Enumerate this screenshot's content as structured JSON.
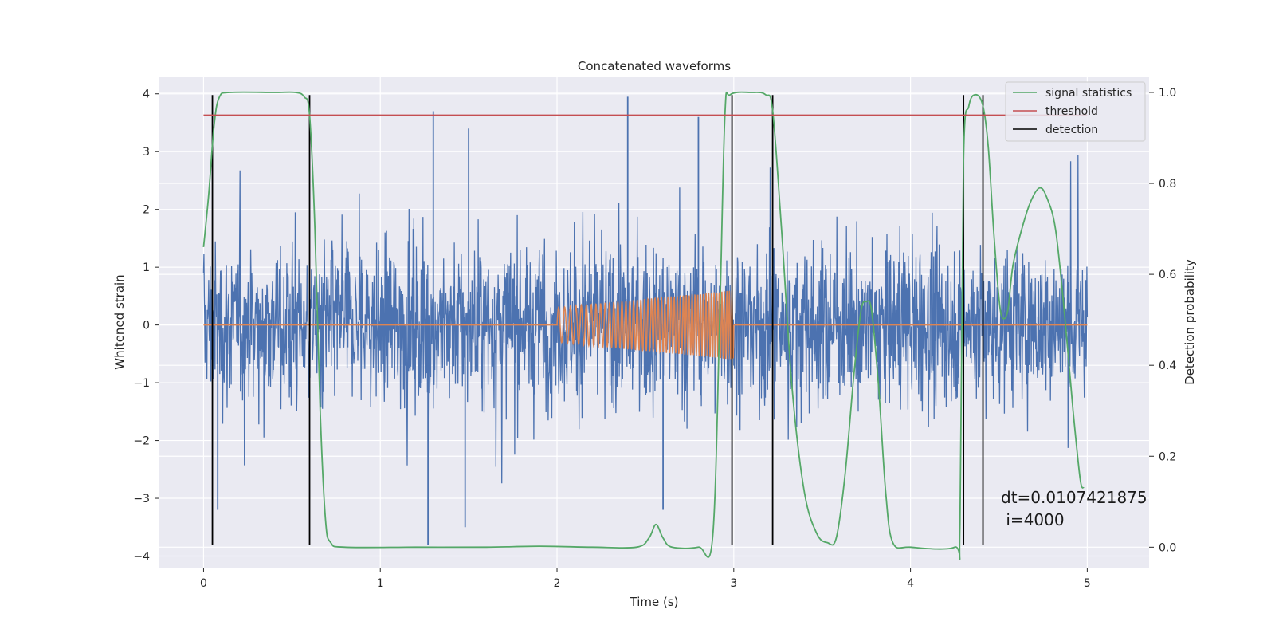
{
  "chart_data": {
    "type": "line",
    "title": "Concatenated waveforms",
    "xlabel": "Time (s)",
    "ylabel_left": "Whitened strain",
    "ylabel_right": "Detection probability",
    "xlim": [
      -0.25,
      5.35
    ],
    "ylim_left": [
      -4.2,
      4.3
    ],
    "ylim_right": [
      -0.045,
      1.035
    ],
    "x_ticks": [
      0,
      1,
      2,
      3,
      4,
      5
    ],
    "x_tick_labels": [
      "0",
      "1",
      "2",
      "3",
      "4",
      "5"
    ],
    "y_left_ticks": [
      -4,
      -3,
      -2,
      -1,
      0,
      1,
      2,
      3,
      4
    ],
    "y_left_tick_labels": [
      "−4",
      "−3",
      "−2",
      "−1",
      "0",
      "1",
      "2",
      "3",
      "4"
    ],
    "y_right_ticks": [
      0.0,
      0.2,
      0.4,
      0.6,
      0.8,
      1.0
    ],
    "y_right_tick_labels": [
      "0.0",
      "0.2",
      "0.4",
      "0.6",
      "0.8",
      "1.0"
    ],
    "grid": true,
    "legend_position": "top-right",
    "series": [
      {
        "name": "",
        "kind": "noisy whitened strain",
        "axis": "left",
        "color": "#4c72b0",
        "x_range": [
          0,
          5
        ],
        "approx_envelope": [
          -2.9,
          3.9
        ],
        "peaks": [
          {
            "x": 1.3,
            "y": 3.7
          },
          {
            "x": 1.5,
            "y": 3.4
          },
          {
            "x": 2.4,
            "y": 3.95
          },
          {
            "x": 2.8,
            "y": 3.6
          },
          {
            "x": 1.27,
            "y": -3.8
          },
          {
            "x": 1.48,
            "y": -3.5
          },
          {
            "x": 0.08,
            "y": -3.2
          },
          {
            "x": 2.6,
            "y": -3.2
          }
        ]
      },
      {
        "name": "",
        "kind": "injected chirp",
        "axis": "left",
        "color": "#dd8452",
        "x_range": [
          0,
          5
        ],
        "chirp_x_range": [
          2.0,
          3.0
        ],
        "chirp_amplitude_range": [
          0.3,
          0.6
        ]
      },
      {
        "name": "signal statistics",
        "axis": "right",
        "color": "#55a868",
        "points": [
          [
            0.0,
            0.66
          ],
          [
            0.03,
            0.78
          ],
          [
            0.06,
            0.93
          ],
          [
            0.09,
            0.99
          ],
          [
            0.15,
            1.0
          ],
          [
            0.4,
            1.0
          ],
          [
            0.52,
            1.0
          ],
          [
            0.57,
            0.99
          ],
          [
            0.6,
            0.95
          ],
          [
            0.63,
            0.7
          ],
          [
            0.66,
            0.3
          ],
          [
            0.69,
            0.06
          ],
          [
            0.72,
            0.01
          ],
          [
            0.8,
            0.0
          ],
          [
            1.2,
            0.0
          ],
          [
            1.6,
            0.0
          ],
          [
            1.9,
            0.002
          ],
          [
            2.2,
            0.0
          ],
          [
            2.45,
            0.0
          ],
          [
            2.52,
            0.02
          ],
          [
            2.56,
            0.05
          ],
          [
            2.6,
            0.02
          ],
          [
            2.65,
            0.0
          ],
          [
            2.8,
            0.0
          ],
          [
            2.88,
            0.02
          ],
          [
            2.92,
            0.5
          ],
          [
            2.95,
            0.95
          ],
          [
            2.98,
            0.995
          ],
          [
            3.1,
            1.0
          ],
          [
            3.18,
            0.995
          ],
          [
            3.22,
            0.96
          ],
          [
            3.27,
            0.7
          ],
          [
            3.33,
            0.35
          ],
          [
            3.4,
            0.12
          ],
          [
            3.47,
            0.03
          ],
          [
            3.53,
            0.01
          ],
          [
            3.58,
            0.02
          ],
          [
            3.63,
            0.16
          ],
          [
            3.68,
            0.38
          ],
          [
            3.72,
            0.52
          ],
          [
            3.75,
            0.54
          ],
          [
            3.78,
            0.52
          ],
          [
            3.82,
            0.35
          ],
          [
            3.86,
            0.12
          ],
          [
            3.9,
            0.01
          ],
          [
            4.0,
            0.0
          ],
          [
            4.25,
            0.0
          ],
          [
            4.28,
            0.05
          ],
          [
            4.3,
            0.85
          ],
          [
            4.33,
            0.97
          ],
          [
            4.37,
            0.995
          ],
          [
            4.41,
            0.97
          ],
          [
            4.44,
            0.88
          ],
          [
            4.47,
            0.7
          ],
          [
            4.5,
            0.55
          ],
          [
            4.52,
            0.505
          ],
          [
            4.55,
            0.52
          ],
          [
            4.58,
            0.62
          ],
          [
            4.63,
            0.7
          ],
          [
            4.68,
            0.76
          ],
          [
            4.73,
            0.79
          ],
          [
            4.77,
            0.77
          ],
          [
            4.82,
            0.7
          ],
          [
            4.87,
            0.52
          ],
          [
            4.92,
            0.3
          ],
          [
            4.96,
            0.15
          ],
          [
            4.98,
            0.13
          ]
        ]
      },
      {
        "name": "threshold",
        "axis": "right",
        "color": "#c44e52",
        "points": [
          [
            0.0,
            0.95
          ],
          [
            5.0,
            0.95
          ]
        ]
      },
      {
        "name": "detection",
        "axis": "left",
        "color": "#000000",
        "vertical_lines_x": [
          0.05,
          0.6,
          2.99,
          3.22,
          4.3,
          4.41
        ],
        "y_range": [
          -3.8,
          3.98
        ]
      }
    ],
    "annotation": [
      "dt=0.0107421875",
      " i=4000"
    ]
  }
}
